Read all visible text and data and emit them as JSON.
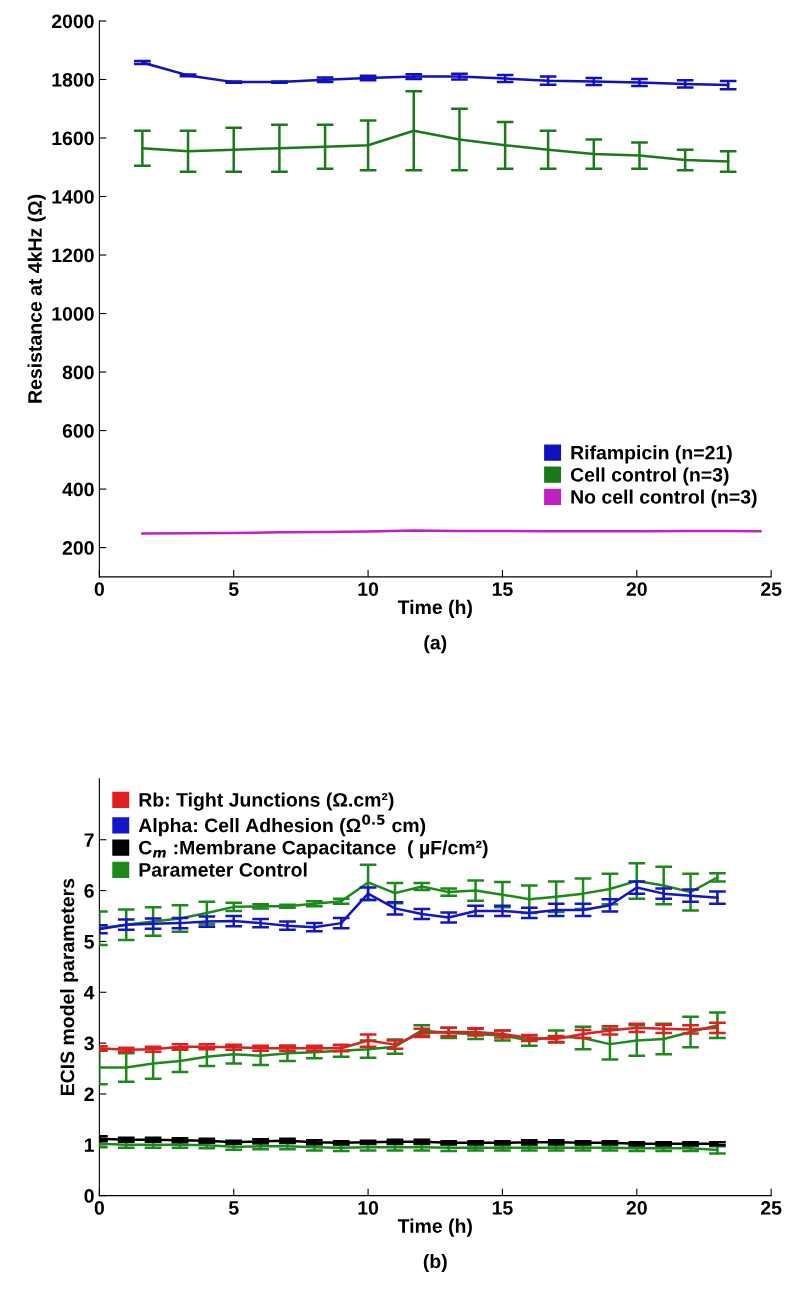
{
  "chart_data": [
    {
      "type": "line",
      "xlabel": "Time (h)",
      "ylabel": "Resistance at 4kHz (Ω)",
      "annotations": [
        "(a)"
      ],
      "xlim": [
        0,
        25
      ],
      "xticks": [
        0,
        5,
        10,
        15,
        20,
        25
      ],
      "ylim": [
        100,
        2000
      ],
      "yticks": [
        200,
        400,
        600,
        800,
        1000,
        1200,
        1400,
        1600,
        1800,
        2000
      ],
      "grid": false,
      "legend": "bottom right",
      "marker": "none",
      "line_style": "solid",
      "series": [
        {
          "name": "Rifampicin (n=21)",
          "color": "#1010c0",
          "x": [
            1.6,
            3.3,
            5.0,
            6.7,
            8.4,
            10.0,
            11.7,
            13.4,
            15.1,
            16.7,
            18.4,
            20.1,
            21.8,
            23.4
          ],
          "values": [
            1858,
            1814,
            1791,
            1791,
            1799,
            1805,
            1810,
            1810,
            1803,
            1796,
            1793,
            1790,
            1785,
            1781
          ],
          "errors": [
            5,
            3,
            2,
            2,
            8,
            8,
            8,
            10,
            12,
            14,
            12,
            12,
            12,
            14
          ]
        },
        {
          "name": "Cell control (n=3)",
          "color": "#1a7a1a",
          "x": [
            1.6,
            3.3,
            5.0,
            6.7,
            8.4,
            10.0,
            11.7,
            13.4,
            15.1,
            16.7,
            18.4,
            20.1,
            21.8,
            23.4
          ],
          "values": [
            1565,
            1555,
            1560,
            1565,
            1570,
            1575,
            1625,
            1595,
            1575,
            1560,
            1545,
            1540,
            1525,
            1520
          ],
          "errors": [
            60,
            70,
            75,
            80,
            75,
            85,
            135,
            105,
            80,
            65,
            50,
            45,
            35,
            35
          ]
        },
        {
          "name": "No cell control (n=3)",
          "color": "#c020c0",
          "x": [
            1.6,
            3.3,
            5.0,
            6.7,
            8.4,
            10.0,
            11.7,
            13.4,
            15.1,
            16.7,
            18.4,
            20.1,
            21.8,
            23.4,
            24.6
          ],
          "values": [
            248,
            249,
            250,
            252,
            253,
            255,
            258,
            257,
            257,
            256,
            256,
            256,
            257,
            257,
            256
          ]
        }
      ]
    },
    {
      "type": "line",
      "xlabel": "Time (h)",
      "ylabel": "ECIS model parameters",
      "annotations": [
        "(b)"
      ],
      "xlim": [
        0,
        25
      ],
      "xticks": [
        0,
        5,
        10,
        15,
        20,
        25
      ],
      "ylim": [
        0,
        8.2
      ],
      "yticks": [
        0,
        1,
        2,
        3,
        4,
        5,
        6,
        7
      ],
      "grid": false,
      "legend": "top left",
      "marker": "none",
      "line_style": "solid",
      "series": [
        {
          "name": "Rb: Tight Junctions (Ω.cm²)",
          "color": "#e02020",
          "x": [
            0,
            1,
            2,
            3,
            4,
            5,
            6,
            7,
            8,
            9,
            10,
            11,
            12,
            13,
            14,
            15,
            16,
            17,
            18,
            19,
            20,
            21,
            22,
            23
          ],
          "values": [
            2.9,
            2.87,
            2.88,
            2.93,
            2.93,
            2.92,
            2.9,
            2.9,
            2.9,
            2.9,
            3.05,
            2.97,
            3.2,
            3.22,
            3.22,
            3.18,
            3.1,
            3.08,
            3.18,
            3.25,
            3.3,
            3.28,
            3.27,
            3.3
          ],
          "errors": [
            0.04,
            0.04,
            0.05,
            0.05,
            0.05,
            0.05,
            0.05,
            0.05,
            0.05,
            0.06,
            0.12,
            0.08,
            0.08,
            0.08,
            0.07,
            0.07,
            0.06,
            0.06,
            0.08,
            0.08,
            0.08,
            0.08,
            0.08,
            0.1
          ]
        },
        {
          "name": "Alpha: Cell Adhesion (Ω$^{0.5}$ cm)",
          "color": "#1515c8",
          "x": [
            0,
            1,
            2,
            3,
            4,
            5,
            6,
            7,
            8,
            9,
            10,
            11,
            12,
            13,
            14,
            15,
            16,
            17,
            18,
            19,
            20,
            21,
            22,
            23
          ],
          "values": [
            5.24,
            5.33,
            5.35,
            5.36,
            5.39,
            5.4,
            5.36,
            5.31,
            5.28,
            5.36,
            5.94,
            5.65,
            5.54,
            5.47,
            5.6,
            5.6,
            5.56,
            5.62,
            5.62,
            5.71,
            6.06,
            5.94,
            5.9,
            5.86
          ],
          "errors": [
            0.08,
            0.1,
            0.1,
            0.1,
            0.1,
            0.1,
            0.08,
            0.08,
            0.08,
            0.1,
            0.12,
            0.12,
            0.1,
            0.1,
            0.1,
            0.1,
            0.1,
            0.12,
            0.12,
            0.12,
            0.12,
            0.1,
            0.12,
            0.12
          ]
        },
        {
          "name": "C$_{m}$ :Membrane Capacitance  ( µF/cm²)",
          "color": "#000000",
          "x": [
            0,
            1,
            2,
            3,
            4,
            5,
            6,
            7,
            8,
            9,
            10,
            11,
            12,
            13,
            14,
            15,
            16,
            17,
            18,
            19,
            20,
            21,
            22,
            23
          ],
          "values": [
            1.12,
            1.1,
            1.1,
            1.09,
            1.08,
            1.05,
            1.07,
            1.08,
            1.05,
            1.04,
            1.05,
            1.06,
            1.06,
            1.04,
            1.04,
            1.04,
            1.05,
            1.05,
            1.04,
            1.04,
            1.02,
            1.02,
            1.02,
            1.02
          ],
          "errors": [
            0.05,
            0.04,
            0.04,
            0.04,
            0.04,
            0.03,
            0.04,
            0.04,
            0.04,
            0.03,
            0.03,
            0.04,
            0.04,
            0.03,
            0.03,
            0.03,
            0.04,
            0.04,
            0.03,
            0.03,
            0.03,
            0.03,
            0.03,
            0.03
          ]
        },
        {
          "name": "Parameter Control",
          "color": "#1a8a1a",
          "x": [
            0,
            1,
            2,
            3,
            4,
            5,
            6,
            7,
            8,
            9,
            10,
            11,
            12,
            13,
            14,
            15,
            16,
            17,
            18,
            19,
            20,
            21,
            22,
            23
          ],
          "values": [
            5.26,
            5.33,
            5.39,
            5.45,
            5.56,
            5.68,
            5.69,
            5.69,
            5.74,
            5.79,
            6.16,
            5.95,
            6.08,
            5.97,
            6.0,
            5.92,
            5.83,
            5.88,
            5.94,
            6.03,
            6.19,
            6.1,
            5.97,
            6.26
          ],
          "errors": [
            0.33,
            0.3,
            0.28,
            0.26,
            0.22,
            0.08,
            0.04,
            0.03,
            0.05,
            0.05,
            0.35,
            0.2,
            0.07,
            0.07,
            0.2,
            0.25,
            0.27,
            0.3,
            0.3,
            0.3,
            0.35,
            0.37,
            0.36,
            0.08
          ]
        },
        {
          "color": "#1a8a1a",
          "x": [
            0,
            1,
            2,
            3,
            4,
            5,
            6,
            7,
            8,
            9,
            10,
            11,
            12,
            13,
            14,
            15,
            16,
            17,
            18,
            19,
            20,
            21,
            22,
            23
          ],
          "values": [
            2.52,
            2.52,
            2.6,
            2.65,
            2.73,
            2.78,
            2.75,
            2.8,
            2.82,
            2.85,
            2.88,
            2.93,
            3.25,
            3.2,
            3.18,
            3.15,
            3.05,
            3.13,
            3.1,
            2.98,
            3.05,
            3.08,
            3.22,
            3.35
          ],
          "errors": [
            0.33,
            0.28,
            0.3,
            0.22,
            0.18,
            0.18,
            0.18,
            0.15,
            0.12,
            0.12,
            0.17,
            0.14,
            0.1,
            0.1,
            0.1,
            0.1,
            0.1,
            0.12,
            0.22,
            0.3,
            0.3,
            0.3,
            0.3,
            0.25
          ]
        },
        {
          "color": "#1a8a1a",
          "x": [
            0,
            1,
            2,
            3,
            4,
            5,
            6,
            7,
            8,
            9,
            10,
            11,
            12,
            13,
            14,
            15,
            16,
            17,
            18,
            19,
            20,
            21,
            22,
            23
          ],
          "values": [
            1.02,
            1.0,
            1.0,
            1.0,
            0.99,
            0.96,
            0.97,
            0.97,
            0.95,
            0.94,
            0.95,
            0.95,
            0.95,
            0.94,
            0.94,
            0.94,
            0.94,
            0.94,
            0.94,
            0.94,
            0.93,
            0.93,
            0.93,
            0.9
          ],
          "errors": [
            0.07,
            0.06,
            0.06,
            0.06,
            0.06,
            0.06,
            0.06,
            0.06,
            0.06,
            0.06,
            0.06,
            0.06,
            0.06,
            0.06,
            0.05,
            0.05,
            0.05,
            0.05,
            0.05,
            0.05,
            0.05,
            0.05,
            0.05,
            0.07
          ]
        }
      ]
    }
  ]
}
